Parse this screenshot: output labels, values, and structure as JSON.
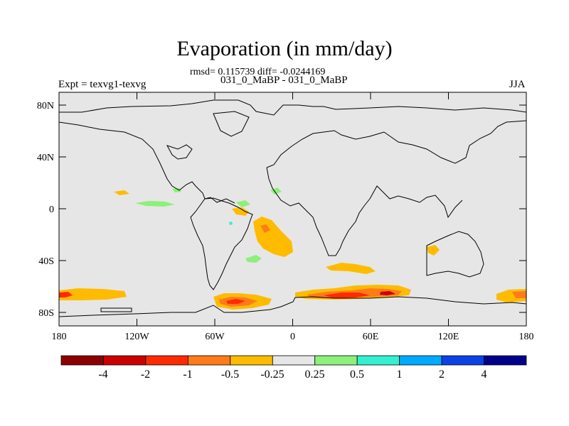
{
  "title": "Evaporation (in mm/day)",
  "stats": "rmsd= 0.115739 diff= -0.0244169",
  "subtitle": "031_0_MaBP - 031_0_MaBP",
  "left_label": "Expt = texvg1-texvg",
  "right_label": "JJA",
  "map": {
    "background_color": "#e6e6e6",
    "lat_ticks": [
      "80N",
      "40N",
      "0",
      "40S",
      "80S"
    ],
    "lon_ticks": [
      "180",
      "120W",
      "60W",
      "0",
      "60E",
      "120E",
      "180"
    ]
  },
  "colorbar": {
    "colors": [
      "#8b0000",
      "#cc0000",
      "#ff2a00",
      "#ff7b1a",
      "#ffbb00",
      "#e6e6e6",
      "#8cf07a",
      "#33f0d0",
      "#00aaff",
      "#0a42e6",
      "#00008b"
    ],
    "labels": [
      "-4",
      "-2",
      "-1",
      "-0.5",
      "-0.25",
      "0.25",
      "0.5",
      "1",
      "2",
      "4"
    ]
  }
}
